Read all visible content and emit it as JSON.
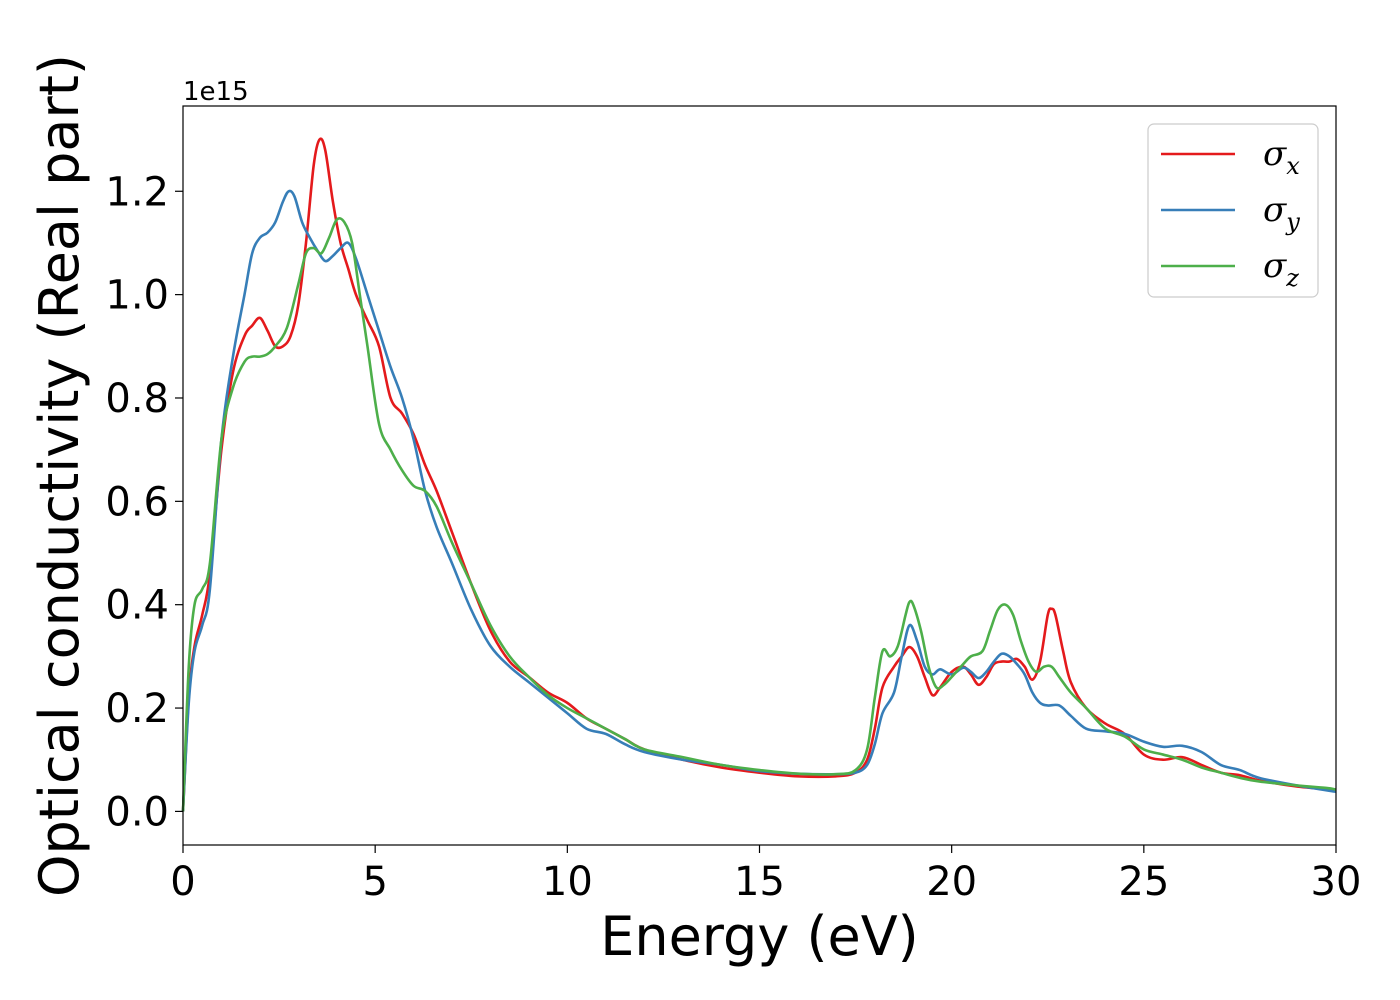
{
  "chart_data": {
    "type": "line",
    "xlabel": "Energy (eV)",
    "ylabel": "Optical conductivity (Real part)",
    "y_offset_label": "1e15",
    "xlim": [
      0,
      30
    ],
    "ylim": [
      -0.065,
      1.365
    ],
    "xticks": [
      0,
      5,
      10,
      15,
      20,
      25,
      30
    ],
    "xtick_labels": [
      "0",
      "5",
      "10",
      "15",
      "20",
      "25",
      "30"
    ],
    "yticks": [
      0.0,
      0.2,
      0.4,
      0.6,
      0.8,
      1.0,
      1.2
    ],
    "ytick_labels": [
      "0.0",
      "0.2",
      "0.4",
      "0.6",
      "0.8",
      "1.0",
      "1.2"
    ],
    "grid": false,
    "legend_position": "top-right",
    "series": [
      {
        "name": "σx",
        "legend_symbol": "σ",
        "legend_subscript": "x",
        "color": "#e41a1c",
        "x": [
          0,
          0.15,
          0.3,
          0.5,
          0.7,
          1.0,
          1.3,
          1.6,
          1.8,
          2.0,
          2.2,
          2.4,
          2.6,
          2.8,
          3.0,
          3.2,
          3.4,
          3.55,
          3.7,
          3.9,
          4.1,
          4.3,
          4.5,
          4.8,
          5.1,
          5.4,
          5.7,
          6.0,
          6.3,
          6.6,
          7.0,
          7.5,
          8.0,
          8.5,
          9.0,
          9.5,
          10.0,
          10.5,
          11.0,
          11.5,
          12.0,
          13.0,
          14.0,
          15.0,
          16.0,
          17.0,
          17.5,
          17.8,
          18.0,
          18.2,
          18.5,
          18.7,
          18.9,
          19.1,
          19.3,
          19.5,
          19.7,
          20.0,
          20.3,
          20.5,
          20.7,
          20.9,
          21.1,
          21.3,
          21.5,
          21.7,
          21.9,
          22.1,
          22.3,
          22.5,
          22.6,
          22.7,
          22.9,
          23.1,
          23.5,
          24.0,
          24.5,
          25.0,
          25.5,
          26.0,
          26.5,
          27.0,
          27.5,
          28.0,
          29.0,
          30.0
        ],
        "y": [
          0.0,
          0.22,
          0.32,
          0.38,
          0.46,
          0.7,
          0.85,
          0.92,
          0.94,
          0.955,
          0.93,
          0.9,
          0.9,
          0.92,
          0.98,
          1.1,
          1.25,
          1.3,
          1.28,
          1.18,
          1.1,
          1.05,
          1.0,
          0.95,
          0.9,
          0.8,
          0.77,
          0.73,
          0.67,
          0.62,
          0.54,
          0.44,
          0.35,
          0.29,
          0.26,
          0.23,
          0.21,
          0.18,
          0.16,
          0.14,
          0.12,
          0.1,
          0.085,
          0.075,
          0.068,
          0.068,
          0.075,
          0.1,
          0.16,
          0.24,
          0.28,
          0.3,
          0.318,
          0.3,
          0.26,
          0.225,
          0.24,
          0.27,
          0.28,
          0.265,
          0.245,
          0.26,
          0.285,
          0.29,
          0.29,
          0.295,
          0.28,
          0.255,
          0.29,
          0.38,
          0.392,
          0.38,
          0.31,
          0.25,
          0.2,
          0.17,
          0.15,
          0.11,
          0.1,
          0.105,
          0.09,
          0.075,
          0.07,
          0.06,
          0.048,
          0.042
        ]
      },
      {
        "name": "σy",
        "legend_symbol": "σ",
        "legend_subscript": "y",
        "color": "#377eb8",
        "x": [
          0,
          0.15,
          0.3,
          0.5,
          0.7,
          1.0,
          1.3,
          1.6,
          1.8,
          2.0,
          2.2,
          2.4,
          2.6,
          2.75,
          2.9,
          3.1,
          3.3,
          3.5,
          3.7,
          3.9,
          4.1,
          4.3,
          4.5,
          4.8,
          5.1,
          5.4,
          5.7,
          6.0,
          6.3,
          6.6,
          7.0,
          7.5,
          8.0,
          8.5,
          9.0,
          9.5,
          10.0,
          10.5,
          11.0,
          11.5,
          12.0,
          13.0,
          14.0,
          15.0,
          16.0,
          17.0,
          17.5,
          17.8,
          18.0,
          18.2,
          18.5,
          18.7,
          18.9,
          19.1,
          19.3,
          19.5,
          19.7,
          20.0,
          20.3,
          20.5,
          20.7,
          20.9,
          21.1,
          21.3,
          21.5,
          21.7,
          21.9,
          22.1,
          22.3,
          22.5,
          22.8,
          23.1,
          23.5,
          24.0,
          24.5,
          25.0,
          25.5,
          26.0,
          26.5,
          27.0,
          27.5,
          28.0,
          29.0,
          30.0
        ],
        "y": [
          0.0,
          0.21,
          0.31,
          0.36,
          0.43,
          0.72,
          0.88,
          1.0,
          1.08,
          1.11,
          1.12,
          1.14,
          1.18,
          1.2,
          1.19,
          1.14,
          1.11,
          1.085,
          1.065,
          1.075,
          1.09,
          1.1,
          1.07,
          1.0,
          0.93,
          0.86,
          0.8,
          0.72,
          0.62,
          0.55,
          0.48,
          0.39,
          0.32,
          0.28,
          0.25,
          0.22,
          0.19,
          0.16,
          0.15,
          0.13,
          0.115,
          0.1,
          0.09,
          0.078,
          0.073,
          0.072,
          0.075,
          0.09,
          0.13,
          0.19,
          0.23,
          0.3,
          0.36,
          0.33,
          0.28,
          0.265,
          0.275,
          0.265,
          0.278,
          0.27,
          0.258,
          0.27,
          0.29,
          0.305,
          0.3,
          0.285,
          0.265,
          0.23,
          0.21,
          0.205,
          0.205,
          0.185,
          0.16,
          0.155,
          0.15,
          0.135,
          0.125,
          0.127,
          0.115,
          0.09,
          0.08,
          0.065,
          0.05,
          0.038
        ]
      },
      {
        "name": "σz",
        "legend_symbol": "σ",
        "legend_subscript": "z",
        "color": "#4daf4a",
        "x": [
          0,
          0.15,
          0.3,
          0.5,
          0.7,
          1.0,
          1.3,
          1.6,
          1.8,
          2.0,
          2.2,
          2.4,
          2.7,
          3.0,
          3.2,
          3.4,
          3.6,
          3.8,
          4.0,
          4.2,
          4.4,
          4.6,
          4.8,
          5.1,
          5.4,
          5.7,
          6.0,
          6.3,
          6.6,
          7.0,
          7.5,
          8.0,
          8.5,
          9.0,
          9.5,
          10.0,
          10.5,
          11.0,
          11.5,
          12.0,
          13.0,
          14.0,
          15.0,
          16.0,
          17.0,
          17.5,
          17.8,
          18.0,
          18.2,
          18.4,
          18.6,
          18.8,
          18.9,
          19.0,
          19.2,
          19.4,
          19.6,
          19.8,
          20.0,
          20.3,
          20.5,
          20.8,
          21.0,
          21.2,
          21.4,
          21.6,
          21.8,
          22.0,
          22.2,
          22.4,
          22.6,
          22.8,
          23.1,
          23.5,
          24.0,
          24.5,
          25.0,
          25.5,
          26.0,
          26.5,
          27.0,
          27.5,
          28.0,
          29.0,
          29.8,
          30.0
        ],
        "y": [
          0.0,
          0.28,
          0.4,
          0.43,
          0.48,
          0.72,
          0.82,
          0.87,
          0.88,
          0.88,
          0.885,
          0.9,
          0.935,
          1.02,
          1.08,
          1.09,
          1.08,
          1.11,
          1.145,
          1.14,
          1.1,
          1.0,
          0.9,
          0.75,
          0.7,
          0.66,
          0.63,
          0.62,
          0.59,
          0.52,
          0.44,
          0.36,
          0.3,
          0.26,
          0.225,
          0.2,
          0.18,
          0.16,
          0.14,
          0.12,
          0.105,
          0.09,
          0.08,
          0.073,
          0.072,
          0.08,
          0.12,
          0.22,
          0.31,
          0.3,
          0.32,
          0.38,
          0.405,
          0.4,
          0.35,
          0.28,
          0.24,
          0.245,
          0.26,
          0.285,
          0.3,
          0.31,
          0.35,
          0.39,
          0.4,
          0.38,
          0.33,
          0.29,
          0.27,
          0.28,
          0.28,
          0.26,
          0.23,
          0.2,
          0.16,
          0.145,
          0.12,
          0.11,
          0.1,
          0.085,
          0.075,
          0.065,
          0.058,
          0.05,
          0.045,
          0.042
        ]
      }
    ]
  }
}
